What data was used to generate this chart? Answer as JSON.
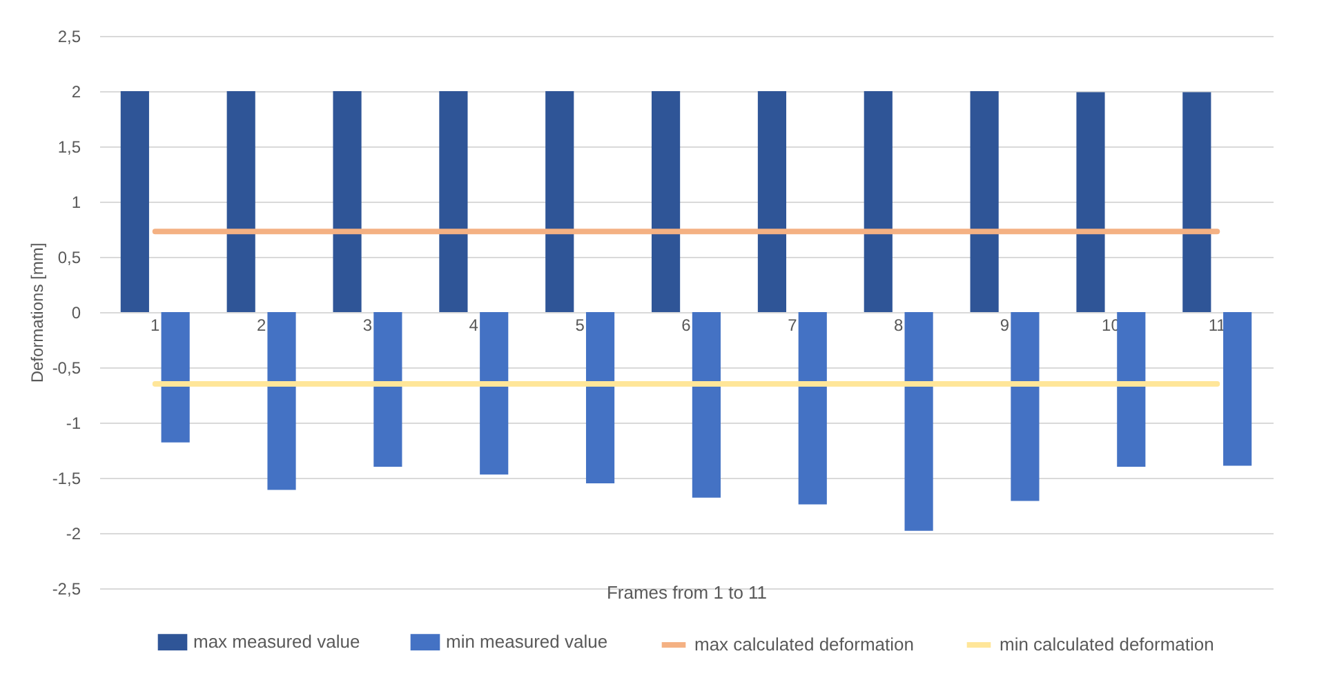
{
  "chart_data": {
    "type": "bar",
    "xlabel": "Frames from 1 to 11",
    "ylabel": "Deformations [mm]",
    "categories": [
      "1",
      "2",
      "3",
      "4",
      "5",
      "6",
      "7",
      "8",
      "9",
      "10",
      "11"
    ],
    "series": [
      {
        "name": "max measured value",
        "color": "#2f5597",
        "values": [
          2,
          2,
          2,
          2,
          2,
          2,
          2,
          2,
          2,
          1.99,
          1.99
        ]
      },
      {
        "name": "min measured value",
        "color": "#4472c4",
        "values": [
          -1.18,
          -1.61,
          -1.4,
          -1.47,
          -1.55,
          -1.68,
          -1.74,
          -1.98,
          -1.71,
          -1.4,
          -1.39
        ]
      },
      {
        "name": "max calculated deformation",
        "type": "line",
        "color": "#f4b183",
        "values": [
          0.73,
          0.73,
          0.73,
          0.73,
          0.73,
          0.73,
          0.73,
          0.73,
          0.73,
          0.73,
          0.73
        ]
      },
      {
        "name": "min calculated deformation",
        "type": "line",
        "color": "#ffe699",
        "values": [
          -0.65,
          -0.65,
          -0.65,
          -0.65,
          -0.65,
          -0.65,
          -0.65,
          -0.65,
          -0.65,
          -0.65,
          -0.65
        ]
      }
    ],
    "ylim": [
      -2.5,
      2.5
    ],
    "yticks": [
      {
        "value": -2.5,
        "label": "-2,5"
      },
      -2,
      {
        "value": -1.5,
        "label": "-1,5"
      },
      -1,
      {
        "value": -0.5,
        "label": "-0,5"
      },
      0,
      {
        "value": 0.5,
        "label": "0,5"
      },
      1,
      {
        "value": 1.5,
        "label": "1,5"
      },
      2,
      {
        "value": 2.5,
        "label": "2,5"
      }
    ],
    "grid": "y",
    "legend": "bottom"
  }
}
